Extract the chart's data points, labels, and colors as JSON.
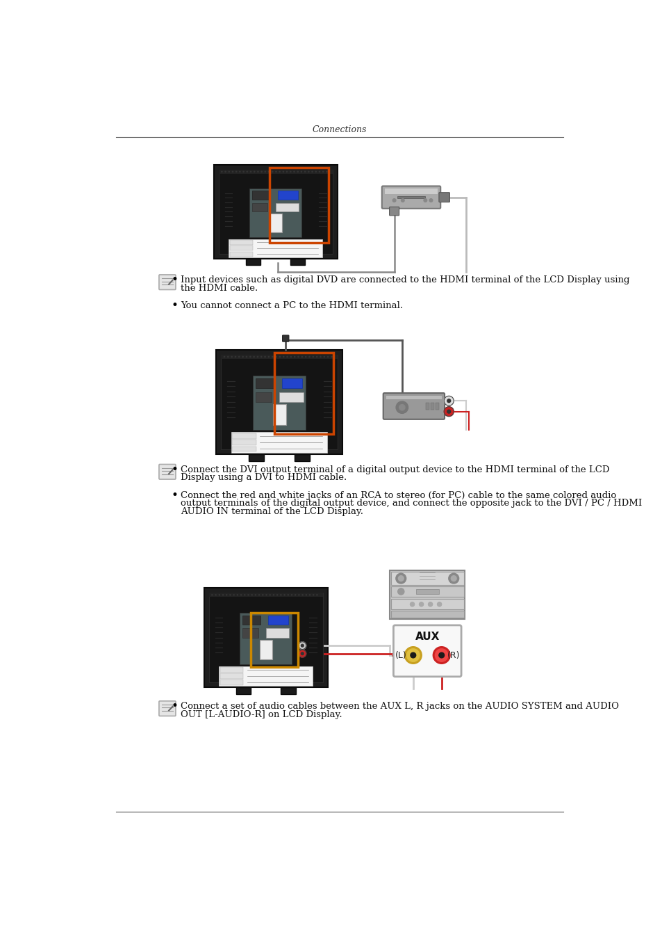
{
  "title": "Connections",
  "background_color": "#ffffff",
  "text_color": "#000000",
  "bullet1_line1": "Input devices such as digital DVD are connected to the HDMI terminal of the LCD Display using",
  "bullet1_line2": "the HDMI cable.",
  "bullet2_text": "You cannot connect a PC to the HDMI terminal.",
  "bullet3_line1": "Connect the DVI output terminal of a digital output device to the HDMI terminal of the LCD",
  "bullet3_line2": "Display using a DVI to HDMI cable.",
  "bullet4_line1": "Connect the red and white jacks of an RCA to stereo (for PC) cable to the same colored audio",
  "bullet4_line2": "output terminals of the digital output device, and connect the opposite jack to the DVI / PC / HDMI",
  "bullet4_line3": "AUDIO IN terminal of the LCD Display.",
  "bullet5_line1": "Connect a set of audio cables between the AUX L, R jacks on the AUDIO SYSTEM and AUDIO",
  "bullet5_line2": "OUT [L-AUDIO-R] on LCD Display."
}
